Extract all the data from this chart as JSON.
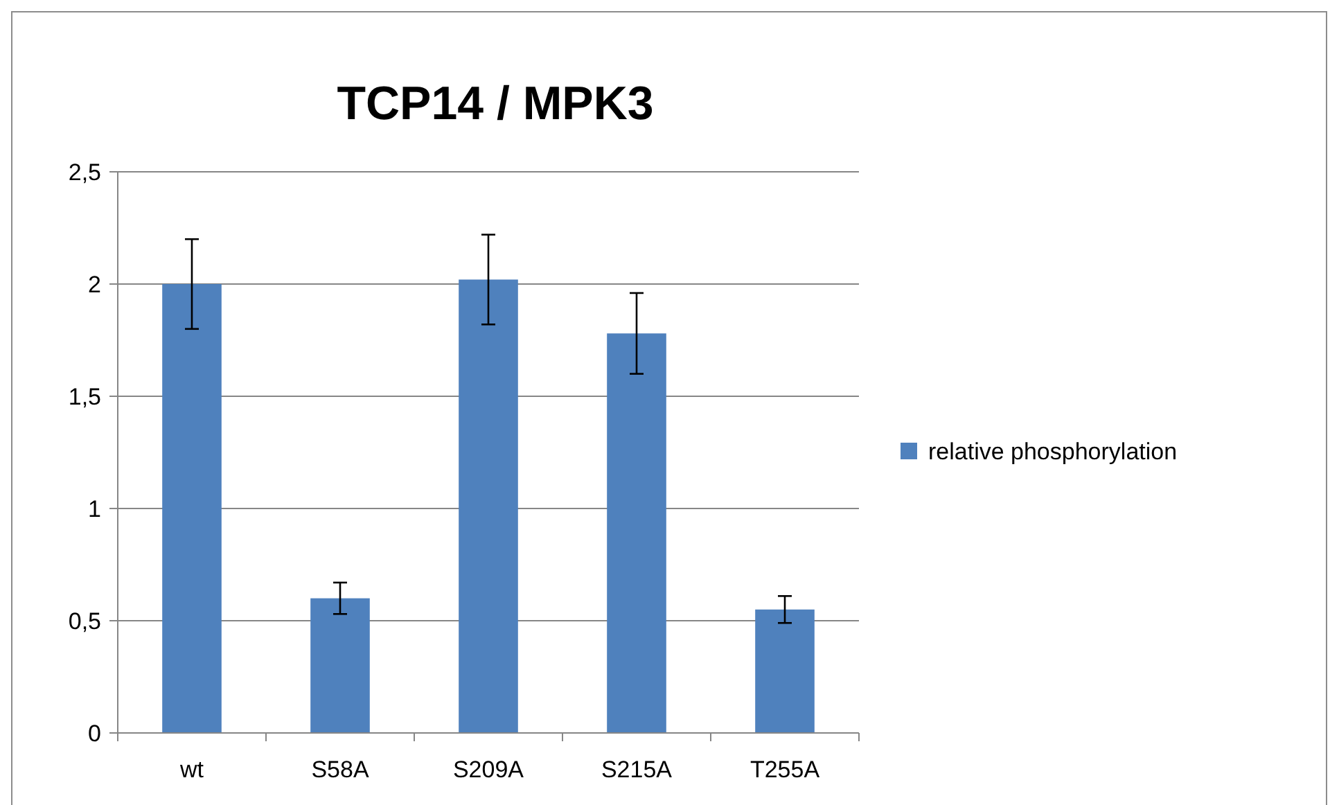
{
  "chart_data": {
    "type": "bar",
    "title": "TCP14 / MPK3",
    "categories": [
      "wt",
      "S58A",
      "S209A",
      "S215A",
      "T255A"
    ],
    "series": [
      {
        "name": "relative phosphorylation",
        "color": "#4f81bd",
        "values": [
          2.0,
          0.6,
          2.02,
          1.78,
          0.55
        ],
        "errors": [
          0.2,
          0.07,
          0.2,
          0.18,
          0.06
        ]
      }
    ],
    "ylim": [
      0,
      2.5
    ],
    "yticks": [
      0,
      {
        "value": 0.5,
        "label": "0,5"
      },
      1,
      {
        "value": 1.5,
        "label": "1,5"
      },
      2,
      {
        "value": 2.5,
        "label": "2,5"
      }
    ],
    "grid": "y",
    "legend": "right"
  }
}
